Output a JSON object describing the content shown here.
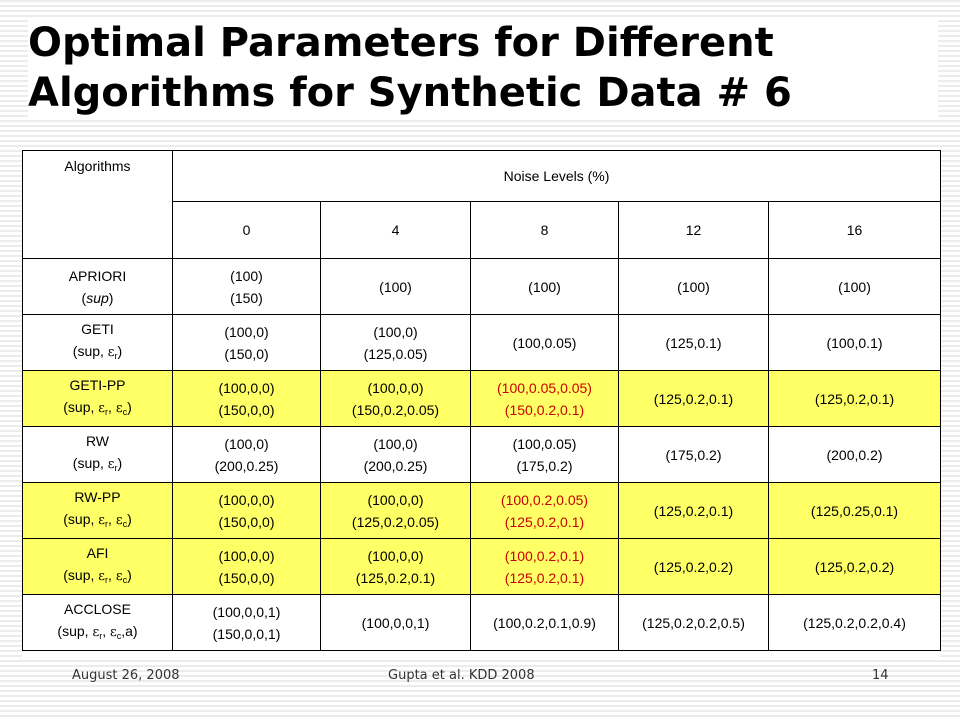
{
  "slide": {
    "title_line1": "Optimal Parameters for Different",
    "title_line2": "Algorithms for Synthetic Data # 6"
  },
  "table": {
    "header": {
      "algorithms": "Algorithms",
      "noise_levels": "Noise Levels (%)",
      "levels": [
        "0",
        "4",
        "8",
        "12",
        "16"
      ]
    },
    "rows": [
      {
        "name": "APRIORI",
        "params": [
          {
            "t": "("
          },
          {
            "t": "sup",
            "i": true
          },
          {
            "t": ")"
          }
        ],
        "highlight": false,
        "cells": [
          {
            "lines": [
              "(100)",
              "(150)"
            ],
            "red": false
          },
          {
            "lines": [
              "(100)"
            ],
            "red": false
          },
          {
            "lines": [
              "(100)"
            ],
            "red": false
          },
          {
            "lines": [
              "(100)"
            ],
            "red": false
          },
          {
            "lines": [
              "(100)"
            ],
            "red": false
          }
        ]
      },
      {
        "name": "GETI",
        "params": [
          {
            "t": "(sup, "
          },
          {
            "t": "ε",
            "eps": true
          },
          {
            "t": "r",
            "sub": true
          },
          {
            "t": ")"
          }
        ],
        "highlight": false,
        "cells": [
          {
            "lines": [
              "(100,0)",
              "(150,0)"
            ],
            "red": false
          },
          {
            "lines": [
              "(100,0)",
              "(125,0.05)"
            ],
            "red": false
          },
          {
            "lines": [
              "(100,0.05)"
            ],
            "red": false
          },
          {
            "lines": [
              "(125,0.1)"
            ],
            "red": false
          },
          {
            "lines": [
              "(100,0.1)"
            ],
            "red": false
          }
        ]
      },
      {
        "name": "GETI-PP",
        "params": [
          {
            "t": "(sup, "
          },
          {
            "t": "ε",
            "eps": true
          },
          {
            "t": "r",
            "sub": true
          },
          {
            "t": ", "
          },
          {
            "t": "ε",
            "eps": true
          },
          {
            "t": "c",
            "sub": true
          },
          {
            "t": ")"
          }
        ],
        "highlight": true,
        "cells": [
          {
            "lines": [
              "(100,0,0)",
              "(150,0,0)"
            ],
            "red": false
          },
          {
            "lines": [
              "(100,0,0)",
              "(150,0.2,0.05)"
            ],
            "red": false
          },
          {
            "lines": [
              "(100,0.05,0.05)",
              "(150,0.2,0.1)"
            ],
            "red": true
          },
          {
            "lines": [
              "(125,0.2,0.1)"
            ],
            "red": false
          },
          {
            "lines": [
              "(125,0.2,0.1)"
            ],
            "red": false
          }
        ]
      },
      {
        "name": "RW",
        "params": [
          {
            "t": "(sup, "
          },
          {
            "t": "ε",
            "eps": true
          },
          {
            "t": "r",
            "sub": true
          },
          {
            "t": ")"
          }
        ],
        "highlight": false,
        "cells": [
          {
            "lines": [
              "(100,0)",
              "(200,0.25)"
            ],
            "red": false
          },
          {
            "lines": [
              "(100,0)",
              "(200,0.25)"
            ],
            "red": false
          },
          {
            "lines": [
              "(100,0.05)",
              "(175,0.2)"
            ],
            "red": false
          },
          {
            "lines": [
              "(175,0.2)"
            ],
            "red": false
          },
          {
            "lines": [
              "(200,0.2)"
            ],
            "red": false
          }
        ]
      },
      {
        "name": "RW-PP",
        "params": [
          {
            "t": "(sup, "
          },
          {
            "t": "ε",
            "eps": true
          },
          {
            "t": "r",
            "sub": true
          },
          {
            "t": ", "
          },
          {
            "t": "ε",
            "eps": true
          },
          {
            "t": "c",
            "sub": true
          },
          {
            "t": ")"
          }
        ],
        "highlight": true,
        "cells": [
          {
            "lines": [
              "(100,0,0)",
              "(150,0,0)"
            ],
            "red": false
          },
          {
            "lines": [
              "(100,0,0)",
              "(125,0.2,0.05)"
            ],
            "red": false
          },
          {
            "lines": [
              "(100,0.2,0.05)",
              "(125,0.2,0.1)"
            ],
            "red": true
          },
          {
            "lines": [
              "(125,0.2,0.1)"
            ],
            "red": false
          },
          {
            "lines": [
              "(125,0.25,0.1)"
            ],
            "red": false
          }
        ]
      },
      {
        "name": "AFI",
        "params": [
          {
            "t": "(sup, "
          },
          {
            "t": "ε",
            "eps": true
          },
          {
            "t": "r",
            "sub": true
          },
          {
            "t": ", "
          },
          {
            "t": "ε",
            "eps": true
          },
          {
            "t": "c",
            "sub": true
          },
          {
            "t": ")"
          }
        ],
        "highlight": true,
        "cells": [
          {
            "lines": [
              "(100,0,0)",
              "(150,0,0)"
            ],
            "red": false
          },
          {
            "lines": [
              "(100,0,0)",
              "(125,0.2,0.1)"
            ],
            "red": false
          },
          {
            "lines": [
              "(100,0.2,0.1)",
              "(125,0.2,0.1)"
            ],
            "red": true
          },
          {
            "lines": [
              "(125,0.2,0.2)"
            ],
            "red": false
          },
          {
            "lines": [
              "(125,0.2,0.2)"
            ],
            "red": false
          }
        ]
      },
      {
        "name": "ACCLOSE",
        "params": [
          {
            "t": "(sup, "
          },
          {
            "t": "ε",
            "eps": true
          },
          {
            "t": "r",
            "sub": true
          },
          {
            "t": ", "
          },
          {
            "t": "ε",
            "eps": true
          },
          {
            "t": "c",
            "sub": true
          },
          {
            "t": ",a)"
          }
        ],
        "highlight": false,
        "cells": [
          {
            "lines": [
              "(100,0,0,1)",
              "(150,0,0,1)"
            ],
            "red": false
          },
          {
            "lines": [
              "(100,0,0,1)"
            ],
            "red": false
          },
          {
            "lines": [
              "(100,0.2,0.1,0.9)"
            ],
            "red": false
          },
          {
            "lines": [
              "(125,0.2,0.2,0.5)"
            ],
            "red": false
          },
          {
            "lines": [
              "(125,0.2,0.2,0.4)"
            ],
            "red": false
          }
        ]
      }
    ]
  },
  "footer": {
    "date": "August 26, 2008",
    "citation": "Gupta et al. KDD 2008",
    "page": "14"
  }
}
